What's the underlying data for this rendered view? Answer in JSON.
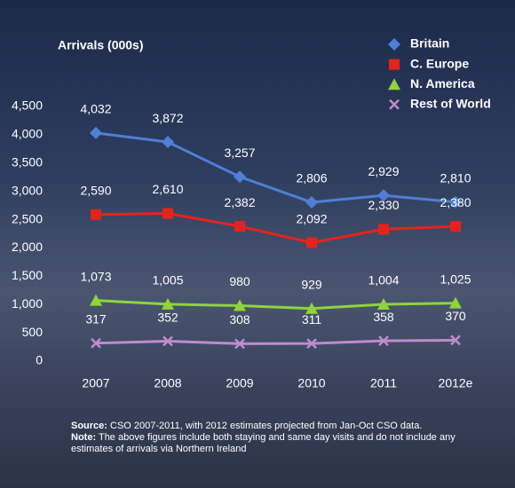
{
  "chart_data": {
    "type": "line",
    "title": "Arrivals (000s)",
    "categories": [
      "2007",
      "2008",
      "2009",
      "2010",
      "2011",
      "2012e"
    ],
    "series": [
      {
        "name": "Britain",
        "color": "#4f7fd6",
        "marker": "diamond",
        "values": [
          4032,
          3872,
          3257,
          2806,
          2929,
          2810
        ],
        "value_labels": [
          "4,032",
          "3,872",
          "3,257",
          "2,806",
          "2,929",
          "2,810"
        ]
      },
      {
        "name": "C. Europe",
        "color": "#e5231b",
        "marker": "square",
        "values": [
          2590,
          2610,
          2382,
          2092,
          2330,
          2380
        ],
        "value_labels": [
          "2,590",
          "2,610",
          "2,382",
          "2,092",
          "2,330",
          "2,380"
        ]
      },
      {
        "name": "N. America",
        "color": "#8fd43a",
        "marker": "triangle",
        "values": [
          1073,
          1005,
          980,
          929,
          1004,
          1025
        ],
        "value_labels": [
          "1,073",
          "1,005",
          "980",
          "929",
          "1,004",
          "1,025"
        ]
      },
      {
        "name": "Rest of World",
        "color": "#c08bd0",
        "marker": "cross",
        "values": [
          317,
          352,
          308,
          311,
          358,
          370
        ]
      }
    ],
    "ylim": [
      0,
      4500
    ],
    "yticks": [
      0,
      500,
      {
        "value": 1000,
        "label": "1,000"
      },
      {
        "value": 1500,
        "label": "1,500"
      },
      {
        "value": 2000,
        "label": "2,000"
      },
      {
        "value": 2500,
        "label": "2,500"
      },
      {
        "value": 3000,
        "label": "3,000"
      },
      {
        "value": 3500,
        "label": "3,500"
      },
      {
        "value": 4000,
        "label": "4,000"
      },
      {
        "value": 4500,
        "label": "4,500"
      }
    ],
    "grid": false,
    "legend": "top-right",
    "source": {
      "label": "Source:",
      "text": "CSO 2007-2011, with 2012 estimates projected from Jan-Oct CSO data."
    },
    "note": {
      "label": "Note:",
      "text": "The above figures include both staying and same day visits and do not include any estimates of arrivals via Northern Ireland"
    }
  }
}
